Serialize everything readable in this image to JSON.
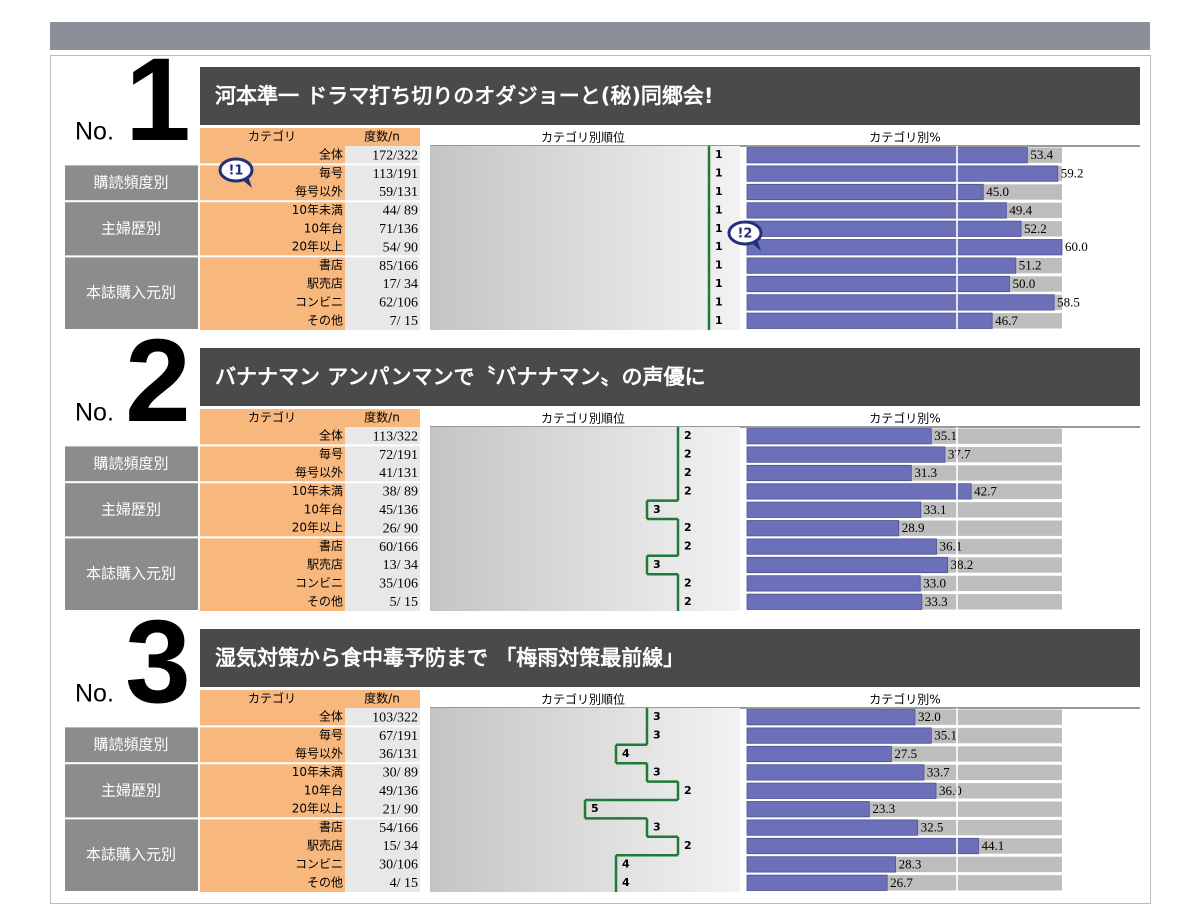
{
  "header_labels": {
    "no": "No.",
    "category": "カテゴリ",
    "count": "度数/n",
    "rank": "カテゴリ別順位",
    "percent": "カテゴリ別%"
  },
  "row_labels": {
    "total": "全体",
    "groups": [
      {
        "label": "購読頻度別",
        "categories": [
          "毎号",
          "毎号以外"
        ]
      },
      {
        "label": "主婦歴別",
        "categories": [
          "10年未満",
          "10年台",
          "20年以上"
        ]
      },
      {
        "label": "本誌購入元別",
        "categories": [
          "書店",
          "駅売店",
          "コンビニ",
          "その他"
        ]
      }
    ]
  },
  "rank_lim": [
    0,
    10
  ],
  "percent_lim": [
    0,
    60
  ],
  "percent_grid": [
    40
  ],
  "rankings": [
    {
      "no": 1,
      "title": "河本準一 ドラマ打ち切りのオダジョーと(秘)同郷会!",
      "counts": [
        "172/322",
        "113/191",
        "59/131",
        "44/ 89",
        "71/136",
        "54/ 90",
        "85/166",
        "17/ 34",
        "62/106",
        "7/ 15"
      ],
      "ranks": [
        1,
        1,
        1,
        1,
        1,
        1,
        1,
        1,
        1,
        1
      ],
      "percents": [
        53.4,
        59.2,
        45.0,
        49.4,
        52.2,
        60.0,
        51.2,
        50.0,
        58.5,
        46.7
      ],
      "percent_labels": [
        "53.4",
        "59.2",
        "45.0",
        "49.4",
        "52.2",
        "60.0",
        "51.2",
        "50.0",
        "58.5",
        "46.7"
      ],
      "callouts": [
        "!1",
        "!2"
      ]
    },
    {
      "no": 2,
      "title": "バナナマン アンパンマンで〝バナナマン〟の声優に",
      "counts": [
        "113/322",
        "72/191",
        "41/131",
        "38/ 89",
        "45/136",
        "26/ 90",
        "60/166",
        "13/ 34",
        "35/106",
        "5/ 15"
      ],
      "ranks": [
        2,
        2,
        2,
        2,
        3,
        2,
        2,
        3,
        2,
        2
      ],
      "percents": [
        35.1,
        37.7,
        31.3,
        42.7,
        33.1,
        28.9,
        36.1,
        38.2,
        33.0,
        33.3
      ],
      "percent_labels": [
        "35.1",
        "37.7",
        "31.3",
        "42.7",
        "33.1",
        "28.9",
        "36.1",
        "38.2",
        "33.0",
        "33.3"
      ]
    },
    {
      "no": 3,
      "title": "湿気対策から食中毒予防まで 「梅雨対策最前線」",
      "counts": [
        "103/322",
        "67/191",
        "36/131",
        "30/ 89",
        "49/136",
        "21/ 90",
        "54/166",
        "15/ 34",
        "30/106",
        "4/ 15"
      ],
      "ranks": [
        3,
        3,
        4,
        3,
        2,
        5,
        3,
        2,
        4,
        4
      ],
      "percents": [
        32.0,
        35.1,
        27.5,
        33.7,
        36.0,
        23.3,
        32.5,
        44.1,
        28.3,
        26.7
      ],
      "percent_labels": [
        "32.0",
        "35.1",
        "27.5",
        "33.7",
        "36.0",
        "23.3",
        "32.5",
        "44.1",
        "28.3",
        "26.7"
      ]
    }
  ]
}
